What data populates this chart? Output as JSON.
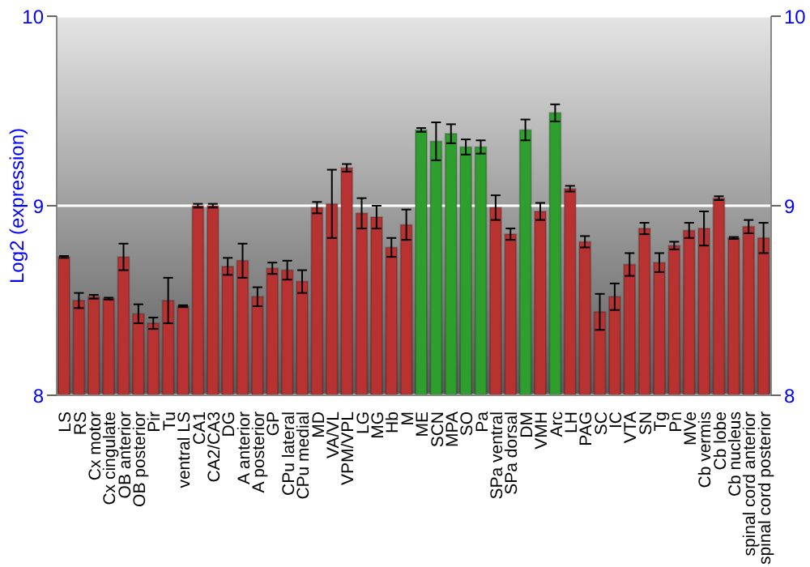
{
  "chart_data": {
    "type": "bar",
    "ylabel": "Log2 (expression)",
    "categories": [
      "LS",
      "RS",
      "Cx motor",
      "Cx cingulate",
      "OB anterior",
      "OB posterior",
      "Pir",
      "Tu",
      "ventral LS",
      "CA1",
      "CA2/CA3",
      "DG",
      "A anterior",
      "A posterior",
      "GP",
      "CPu lateral",
      "CPu medial",
      "MD",
      "VA/VL",
      "VPM/VPL",
      "LG",
      "MG",
      "Hb",
      "M",
      "ME",
      "SCN",
      "MPA",
      "SO",
      "Pa",
      "SPa ventral",
      "SPa dorsal",
      "DM",
      "VMH",
      "Arc",
      "LH",
      "PAG",
      "SC",
      "IC",
      "VTA",
      "SN",
      "Tg",
      "Pn",
      "MVe",
      "Cb vermis",
      "Cb lobe",
      "Cb nucleus",
      "spinal cord anterior",
      "spinal cord posterior"
    ],
    "values": [
      8.73,
      8.5,
      8.52,
      8.51,
      8.73,
      8.43,
      8.38,
      8.5,
      8.47,
      9.0,
      9.0,
      8.68,
      8.71,
      8.52,
      8.67,
      8.66,
      8.6,
      8.99,
      9.01,
      9.2,
      8.96,
      8.94,
      8.78,
      8.9,
      9.4,
      9.34,
      9.38,
      9.31,
      9.31,
      8.99,
      8.85,
      9.4,
      8.97,
      9.49,
      9.09,
      8.81,
      8.44,
      8.52,
      8.69,
      8.88,
      8.7,
      8.79,
      8.87,
      8.88,
      9.04,
      8.83,
      8.89,
      8.83
    ],
    "errors": [
      0.005,
      0.04,
      0.01,
      0.005,
      0.07,
      0.05,
      0.03,
      0.12,
      0.005,
      0.01,
      0.01,
      0.045,
      0.09,
      0.05,
      0.03,
      0.05,
      0.06,
      0.03,
      0.18,
      0.02,
      0.08,
      0.06,
      0.05,
      0.08,
      0.01,
      0.1,
      0.05,
      0.04,
      0.035,
      0.065,
      0.03,
      0.055,
      0.045,
      0.045,
      0.015,
      0.03,
      0.095,
      0.07,
      0.06,
      0.03,
      0.05,
      0.02,
      0.04,
      0.09,
      0.01,
      0.005,
      0.035,
      0.08
    ],
    "colors": [
      "#b83232",
      "#b83232",
      "#b83232",
      "#b83232",
      "#b83232",
      "#b83232",
      "#b83232",
      "#b83232",
      "#b83232",
      "#b83232",
      "#b83232",
      "#b83232",
      "#b83232",
      "#b83232",
      "#b83232",
      "#b83232",
      "#b83232",
      "#b83232",
      "#b83232",
      "#b83232",
      "#b83232",
      "#b83232",
      "#b83232",
      "#b83232",
      "#2e9e2e",
      "#2e9e2e",
      "#2e9e2e",
      "#2e9e2e",
      "#2e9e2e",
      "#b83232",
      "#b83232",
      "#2e9e2e",
      "#b83232",
      "#2e9e2e",
      "#b83232",
      "#b83232",
      "#b83232",
      "#b83232",
      "#b83232",
      "#b83232",
      "#b83232",
      "#b83232",
      "#b83232",
      "#b83232",
      "#b83232",
      "#b83232",
      "#b83232",
      "#b83232"
    ],
    "ylim": [
      8,
      10
    ],
    "yticks": [
      8,
      9,
      10
    ],
    "y2lim": [
      8,
      10
    ],
    "y2ticks": [
      8,
      9,
      10
    ],
    "grid": "y"
  }
}
